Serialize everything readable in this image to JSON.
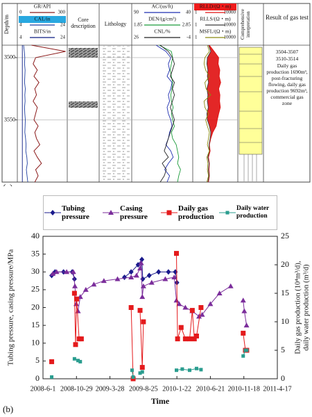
{
  "panel_labels": [
    "(a)",
    "(b)"
  ],
  "well_log": {
    "depth_label": "Depth/m",
    "core_label": "Core description",
    "lithology_label": "Lithology",
    "interpretation_label": "Comprehensive interpretation",
    "result_label": "Result of gas test",
    "result_lines": [
      "3504-3507",
      "3510-3514",
      "Daily gas production 1690m³, post-fracturing flowing, daily gas production 9692m³, commercial gas zone"
    ],
    "depth_range": [
      3490,
      3600
    ],
    "depth_ticks": [
      3500,
      3550
    ],
    "depths": [
      3490,
      3495,
      3500,
      3505,
      3510,
      3515,
      3520,
      3525,
      3530,
      3535,
      3540,
      3545,
      3550,
      3555,
      3560,
      3565,
      3570,
      3575,
      3580,
      3585,
      3590,
      3595,
      3600
    ],
    "tracks": [
      {
        "curves": [
          {
            "label": "GR/API",
            "scale": [
              0,
              300
            ],
            "color": "#8b1a1a",
            "log": false,
            "values": [
              85,
              290,
              110,
              95,
              120,
              100,
              130,
              105,
              115,
              95,
              120,
              110,
              100,
              125,
              105,
              115,
              135,
              100,
              120,
              145,
              110,
              125,
              105
            ]
          },
          {
            "label": "CAL/in",
            "scale": [
              4,
              24
            ],
            "color": "#1f3fa0",
            "log": false,
            "label_bg": "#29a8e0",
            "values": [
              6.5,
              6.8,
              7.0,
              6.9,
              7.1,
              7.0,
              6.9,
              7.2,
              7.0,
              7.1,
              6.9,
              7.0,
              7.2,
              7.1,
              7.0,
              7.3,
              7.5,
              7.4,
              7.8,
              8.0,
              7.6,
              7.9,
              8.2
            ]
          },
          {
            "label": "BITS/in",
            "scale": [
              4,
              24
            ],
            "color": "#0a1a80",
            "log": false,
            "values": [
              6,
              6,
              6,
              6,
              6,
              6,
              6,
              6,
              6,
              6,
              6,
              6,
              6,
              6,
              6,
              6,
              6,
              6,
              6,
              6,
              6,
              6,
              6
            ]
          }
        ]
      },
      {
        "curves": [
          {
            "label": "AC/(us/ft)",
            "scale": [
              90,
              40
            ],
            "color": "#1f2fb0",
            "log": false,
            "values": [
              70,
              62,
              58,
              60,
              59,
              61,
              57,
              58,
              60,
              59,
              61,
              60,
              58,
              57,
              59,
              60,
              62,
              58,
              56,
              60,
              63,
              59,
              61
            ]
          },
          {
            "label": "DEN/(g/cm³)",
            "scale": [
              1.85,
              2.85
            ],
            "color": "#1a9a3a",
            "log": false,
            "values": [
              2.3,
              2.5,
              2.52,
              2.5,
              2.48,
              2.5,
              2.52,
              2.51,
              2.49,
              2.5,
              2.53,
              2.5,
              2.52,
              2.55,
              2.5,
              2.52,
              2.58,
              2.6,
              2.62,
              2.6,
              2.65,
              2.62,
              2.6
            ]
          },
          {
            "label": "CNL/%",
            "scale": [
              26,
              -4
            ],
            "color": "#222222",
            "log": false,
            "values": [
              12,
              8,
              6,
              5,
              6,
              7,
              5,
              6,
              5,
              6,
              7,
              6,
              5,
              6,
              7,
              8,
              9,
              10,
              8,
              11,
              9,
              10,
              12
            ]
          }
        ]
      },
      {
        "curves": [
          {
            "label": "RLLD/(Ω・m)",
            "scale": [
              1,
              10000
            ],
            "color": "#e01010",
            "log": true,
            "label_bg": "#ee1c1c",
            "values": [
              30,
              80,
              200,
              180,
              250,
              220,
              300,
              200,
              260,
              240,
              280,
              200,
              150,
              120,
              60,
              40,
              30,
              35,
              25,
              30,
              28,
              30,
              25
            ]
          },
          {
            "label": "RLLS/(Ω・m)",
            "scale": [
              1,
              10000
            ],
            "color": "#3a3a3a",
            "log": true,
            "values": [
              25,
              40,
              20,
              18,
              22,
              20,
              25,
              18,
              22,
              20,
              24,
              18,
              20,
              30,
              40,
              35,
              28,
              30,
              22,
              28,
              25,
              28,
              22
            ]
          },
          {
            "label": "MSFL/(Ω・m)",
            "scale": [
              1,
              10000
            ],
            "color": "#8a8a10",
            "log": true,
            "values": [
              20,
              30,
              12,
              10,
              14,
              30,
              12,
              15,
              40,
              10,
              12,
              25,
              14,
              20,
              30,
              25,
              20,
              30,
              18,
              22,
              20,
              25,
              18
            ]
          }
        ]
      }
    ]
  },
  "chart_data": {
    "type": "line",
    "xlabel": "Time",
    "ylabel": "Tubing pressure, casing pressure/MPa",
    "y2label": [
      "Daily gas production (10⁴m³/d),",
      "daily water production (m³/d)"
    ],
    "xlim": [
      "2008-6-1",
      "2011-4-17"
    ],
    "xticks": [
      "2008-6-1",
      "2008-10-29",
      "2009-3-28",
      "2009-8-25",
      "2010-1-22",
      "2010-6-21",
      "2010-11-18",
      "2011-4-17"
    ],
    "ylim": [
      0,
      40
    ],
    "yticks": [
      0,
      5,
      10,
      15,
      20,
      25,
      30,
      35,
      40
    ],
    "y2lim": [
      0,
      25
    ],
    "y2ticks": [
      0,
      5,
      10,
      15,
      20,
      25
    ],
    "series": [
      {
        "name": "Tubing pressure",
        "color": "#1a1a8c",
        "marker": "diamond",
        "axis": "y",
        "x": [
          "2008-7-10",
          "2008-7-25",
          "2008-9-1",
          "2008-10-10",
          "2008-10-20",
          null,
          "2009-6-1",
          "2009-7-1",
          "2009-8-1",
          "2009-8-18",
          "2009-8-22",
          "2009-9-20",
          "2009-11-1",
          "2009-12-15",
          "2010-1-15",
          "2010-1-22"
        ],
        "values": [
          29,
          30,
          30,
          30,
          28,
          null,
          28.5,
          30,
          32,
          33.5,
          28,
          29,
          30,
          30,
          30,
          27
        ]
      },
      {
        "name": "Casing pressure",
        "color": "#7b2d9b",
        "marker": "triangle",
        "axis": "y",
        "x": [
          "2008-7-15",
          "2008-8-1",
          "2008-9-15",
          "2008-10-15",
          "2008-10-22",
          "2008-10-28",
          "2008-11-5",
          "2008-11-15",
          "2008-12-10",
          "2009-1-15",
          "2009-3-1",
          "2009-5-1",
          "2009-7-1",
          "2009-7-25",
          "2009-8-10",
          "2009-8-15",
          "2009-8-20",
          "2009-8-25",
          "2009-10-1",
          "2009-12-1",
          "2010-1-10",
          "2010-1-20",
          "2010-2-1",
          "2010-3-1",
          "2010-4-1",
          "2010-5-1",
          "2010-5-15",
          "2010-6-21",
          "2010-8-1",
          "2010-9-20",
          null,
          "2010-11-15",
          "2010-11-20",
          "2010-11-30"
        ],
        "values": [
          29.5,
          30,
          30,
          30,
          26,
          21,
          19,
          23,
          25,
          26.5,
          27.5,
          28,
          28.5,
          29,
          31,
          32.5,
          23,
          26,
          27,
          28,
          28.5,
          22,
          21,
          20,
          19,
          17.5,
          18,
          21,
          24,
          26,
          null,
          22,
          19,
          15
        ]
      },
      {
        "name": "Daily gas production",
        "color": "#e41a1c",
        "marker": "square",
        "axis": "y2",
        "x": [
          "2008-7-10",
          null,
          "2008-10-20",
          "2008-10-25",
          "2008-10-30",
          "2008-11-10",
          "2008-11-20",
          null,
          "2009-7-1",
          "2009-7-10",
          null,
          "2009-8-10",
          "2009-8-20",
          "2009-8-25",
          null,
          "2010-1-20",
          "2010-1-25",
          "2010-2-10",
          "2010-3-1",
          "2010-3-20",
          "2010-4-1",
          "2010-4-10",
          "2010-4-20",
          "2010-5-10",
          null,
          "2010-11-15",
          "2010-11-25",
          "2010-12-1"
        ],
        "values": [
          3,
          null,
          15,
          6,
          14,
          7,
          7,
          null,
          12.5,
          0,
          null,
          12,
          2,
          10,
          null,
          22,
          7,
          9,
          7,
          7,
          12,
          7,
          7.5,
          12.5,
          null,
          8,
          5,
          5
        ]
      },
      {
        "name": "Daily water production",
        "color": "#2a9d8f",
        "marker": "small-square",
        "axis": "y2",
        "x": [
          "2008-7-10",
          null,
          "2008-10-20",
          "2008-11-5",
          "2008-11-15",
          null,
          "2009-7-5",
          "2009-7-10",
          null,
          "2009-8-10",
          "2009-8-20",
          null,
          "2010-1-20",
          "2010-2-15",
          "2010-3-20",
          "2010-4-20",
          "2010-5-10",
          null,
          "2010-11-15",
          "2010-11-25",
          "2010-12-1"
        ],
        "values": [
          0.3,
          null,
          3.5,
          3.2,
          3,
          null,
          1.5,
          0.3,
          null,
          1,
          1.2,
          null,
          1.5,
          1.7,
          1.5,
          1.8,
          1.6,
          null,
          4,
          5,
          5
        ]
      }
    ]
  }
}
